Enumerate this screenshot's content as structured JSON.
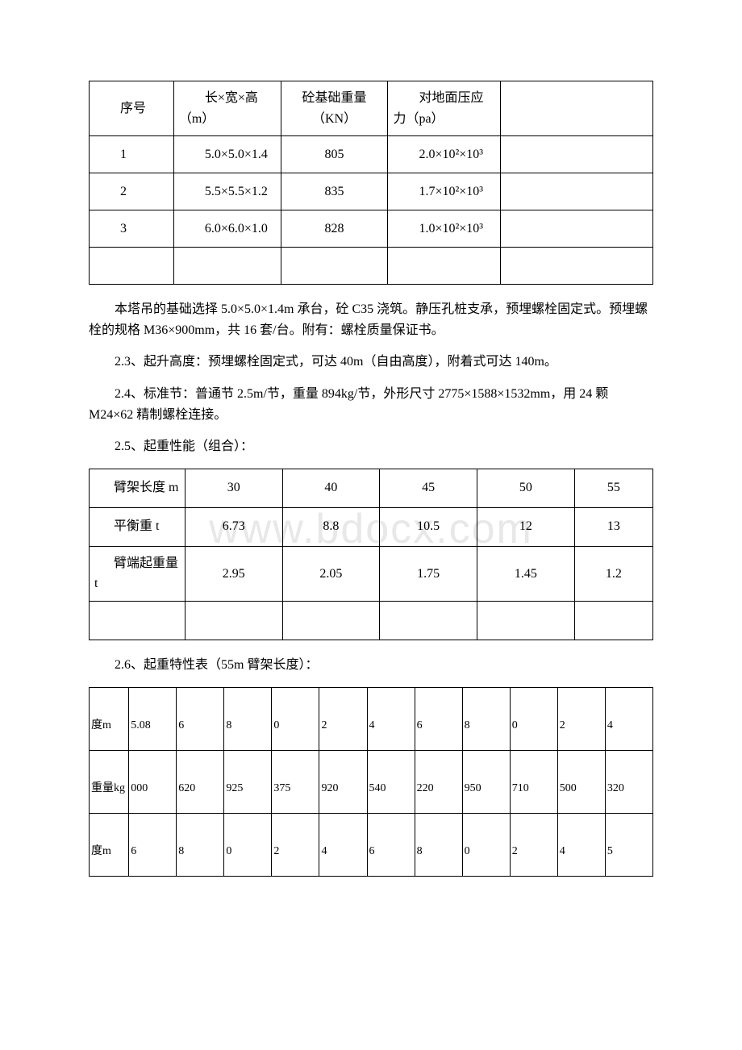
{
  "watermark": "www.bdocx.com",
  "table1": {
    "headers": [
      "序号",
      "长×宽×高（m）",
      "砼基础重量（KN）",
      "对地面压应力（pa）",
      ""
    ],
    "rows": [
      [
        "1",
        "5.0×5.0×1.4",
        "805",
        "2.0×10²×10³",
        ""
      ],
      [
        "2",
        "5.5×5.5×1.2",
        "835",
        "1.7×10²×10³",
        ""
      ],
      [
        "3",
        "6.0×6.0×1.0",
        "828",
        "1.0×10²×10³",
        ""
      ],
      [
        "",
        "",
        "",
        "",
        ""
      ]
    ]
  },
  "para1": "本塔吊的基础选择 5.0×5.0×1.4m 承台，砼 C35 浇筑。静压孔桩支承，预埋螺栓固定式。预埋螺栓的规格 M36×900mm，共 16 套/台。附有：螺栓质量保证书。",
  "para2": "2.3、起升高度：预埋螺栓固定式，可达 40m（自由高度），附着式可达 140m。",
  "para3": "2.4、标准节：普通节 2.5m/节，重量 894kg/节，外形尺寸 2775×1588×1532mm，用 24 颗 M24×62 精制螺栓连接。",
  "para4": "2.5、起重性能（组合）：",
  "table2": {
    "rows": [
      [
        "臂架长度 m",
        "30",
        "40",
        "45",
        "50",
        "55"
      ],
      [
        "平衡重 t",
        "6.73",
        "8.8",
        "10.5",
        "12",
        "13"
      ],
      [
        "臂端起重量 t",
        "2.95",
        "2.05",
        "1.75",
        "1.45",
        "1.2"
      ],
      [
        "",
        "",
        "",
        "",
        "",
        ""
      ]
    ]
  },
  "para5": "2.6、起重特性表（55m 臂架长度）：",
  "table3": {
    "rows": [
      {
        "label": "度m",
        "cells": [
          "5.08",
          "6",
          "8",
          "0",
          "2",
          "4",
          "6",
          "8",
          "0",
          "2",
          "4"
        ]
      },
      {
        "label": "重量kg",
        "cells": [
          "000",
          "620",
          "925",
          "375",
          "920",
          "540",
          "220",
          "950",
          "710",
          "500",
          "320"
        ]
      },
      {
        "label": "度m",
        "cells": [
          "6",
          "8",
          "0",
          "2",
          "4",
          "6",
          "8",
          "0",
          "2",
          "4",
          "5"
        ]
      }
    ]
  }
}
